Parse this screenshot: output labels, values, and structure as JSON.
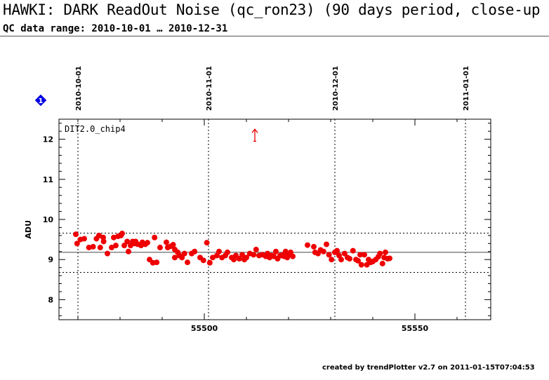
{
  "header": {
    "title": "HAWKI: DARK ReadOut Noise (qc_ron23) (90 days period, close-up",
    "subtitle": "QC data range: 2010-10-01 … 2010-12-31"
  },
  "footer": {
    "text": "created by trendPlotter v2.7 on 2011-01-15T07:04:53"
  },
  "marker": {
    "label": "1",
    "color": "#0000ee"
  },
  "chart_data": {
    "type": "scatter",
    "panel_label": "DIT2.0_chip4",
    "ylabel": "ADU",
    "xlim": [
      55465.5,
      55568
    ],
    "ylim": [
      7.5,
      12.5
    ],
    "x_ticks": [
      55500,
      55550
    ],
    "y_ticks": [
      8,
      9,
      10,
      11,
      12
    ],
    "date_markers": [
      {
        "label": "2010-10-01",
        "x": 55470
      },
      {
        "label": "2010-11-01",
        "x": 55501
      },
      {
        "label": "2010-12-01",
        "x": 55531
      },
      {
        "label": "2011-01-01",
        "x": 55562
      }
    ],
    "reference_lines": {
      "mean": 9.18,
      "upper": 9.66,
      "lower": 8.68
    },
    "outlier_arrow": {
      "x": 55512,
      "y_from": 11.95,
      "y_to": 12.25
    },
    "colors": {
      "points": "#ee0000",
      "mean_line": "#444444",
      "grid": "#000000"
    },
    "points": [
      [
        55469.5,
        9.63
      ],
      [
        55469.8,
        9.4
      ],
      [
        55470.6,
        9.5
      ],
      [
        55471.5,
        9.52
      ],
      [
        55472.6,
        9.3
      ],
      [
        55473.6,
        9.32
      ],
      [
        55474.4,
        9.52
      ],
      [
        55475.0,
        9.6
      ],
      [
        55475.3,
        9.3
      ],
      [
        55476.0,
        9.55
      ],
      [
        55476.1,
        9.45
      ],
      [
        55477.0,
        9.15
      ],
      [
        55478.0,
        9.3
      ],
      [
        55478.5,
        9.55
      ],
      [
        55479.0,
        9.35
      ],
      [
        55479.5,
        9.58
      ],
      [
        55480.2,
        9.6
      ],
      [
        55480.5,
        9.65
      ],
      [
        55481.0,
        9.35
      ],
      [
        55481.7,
        9.45
      ],
      [
        55482.0,
        9.2
      ],
      [
        55482.5,
        9.35
      ],
      [
        55483.0,
        9.45
      ],
      [
        55483.4,
        9.4
      ],
      [
        55483.7,
        9.45
      ],
      [
        55484.2,
        9.38
      ],
      [
        55485.0,
        9.35
      ],
      [
        55485.3,
        9.43
      ],
      [
        55486.0,
        9.38
      ],
      [
        55486.5,
        9.42
      ],
      [
        55487.0,
        9.0
      ],
      [
        55487.8,
        8.92
      ],
      [
        55488.2,
        9.55
      ],
      [
        55488.7,
        8.93
      ],
      [
        55489.5,
        9.3
      ],
      [
        55491.0,
        9.43
      ],
      [
        55491.3,
        9.3
      ],
      [
        55492.0,
        9.33
      ],
      [
        55492.6,
        9.37
      ],
      [
        55493.0,
        9.25
      ],
      [
        55493.0,
        9.05
      ],
      [
        55493.7,
        9.18
      ],
      [
        55494.1,
        9.1
      ],
      [
        55494.7,
        9.05
      ],
      [
        55495.3,
        9.15
      ],
      [
        55496.0,
        8.93
      ],
      [
        55497.0,
        9.15
      ],
      [
        55497.7,
        9.2
      ],
      [
        55499.0,
        9.05
      ],
      [
        55499.8,
        8.98
      ],
      [
        55500.6,
        9.42
      ],
      [
        55501.3,
        8.92
      ],
      [
        55502.0,
        9.05
      ],
      [
        55503.0,
        9.1
      ],
      [
        55503.5,
        9.2
      ],
      [
        55504.2,
        9.05
      ],
      [
        55505.0,
        9.1
      ],
      [
        55505.5,
        9.18
      ],
      [
        55506.5,
        9.05
      ],
      [
        55507.0,
        9.0
      ],
      [
        55507.5,
        9.1
      ],
      [
        55508.3,
        9.02
      ],
      [
        55509.0,
        9.12
      ],
      [
        55509.5,
        9.0
      ],
      [
        55510.0,
        9.05
      ],
      [
        55510.8,
        9.15
      ],
      [
        55511.7,
        9.12
      ],
      [
        55512.3,
        9.25
      ],
      [
        55513.0,
        9.1
      ],
      [
        55513.8,
        9.12
      ],
      [
        55514.6,
        9.08
      ],
      [
        55515.0,
        9.15
      ],
      [
        55515.5,
        9.05
      ],
      [
        55516.0,
        9.1
      ],
      [
        55516.5,
        9.08
      ],
      [
        55517.0,
        9.2
      ],
      [
        55517.4,
        9.02
      ],
      [
        55518.0,
        9.1
      ],
      [
        55518.3,
        9.1
      ],
      [
        55518.7,
        9.12
      ],
      [
        55519.0,
        9.08
      ],
      [
        55519.3,
        9.2
      ],
      [
        55519.7,
        9.05
      ],
      [
        55520.0,
        9.12
      ],
      [
        55520.5,
        9.18
      ],
      [
        55521.0,
        9.08
      ],
      [
        55524.5,
        9.36
      ],
      [
        55526.0,
        9.32
      ],
      [
        55526.3,
        9.18
      ],
      [
        55527.0,
        9.15
      ],
      [
        55527.6,
        9.24
      ],
      [
        55528.3,
        9.2
      ],
      [
        55529.0,
        9.38
      ],
      [
        55529.6,
        9.12
      ],
      [
        55530.2,
        9.0
      ],
      [
        55531.0,
        9.18
      ],
      [
        55531.5,
        9.22
      ],
      [
        55532.0,
        9.1
      ],
      [
        55532.5,
        9.0
      ],
      [
        55533.3,
        9.15
      ],
      [
        55534.0,
        9.05
      ],
      [
        55534.5,
        9.02
      ],
      [
        55535.3,
        9.22
      ],
      [
        55536.0,
        9.0
      ],
      [
        55536.5,
        8.97
      ],
      [
        55537.0,
        9.12
      ],
      [
        55537.3,
        8.87
      ],
      [
        55538.0,
        9.12
      ],
      [
        55538.6,
        8.87
      ],
      [
        55539.0,
        9.0
      ],
      [
        55539.5,
        8.93
      ],
      [
        55540.0,
        8.95
      ],
      [
        55540.7,
        9.0
      ],
      [
        55541.3,
        9.07
      ],
      [
        55541.7,
        9.15
      ],
      [
        55542.3,
        8.9
      ],
      [
        55542.7,
        9.05
      ],
      [
        55543.0,
        9.18
      ],
      [
        55543.5,
        9.02
      ],
      [
        55544.0,
        9.03
      ]
    ]
  }
}
